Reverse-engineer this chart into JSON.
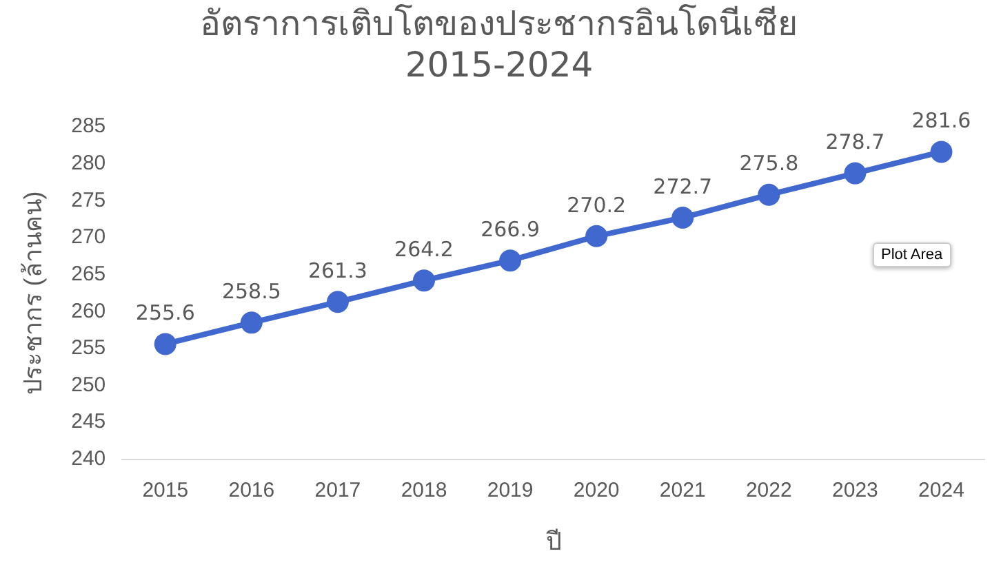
{
  "chart_data": {
    "type": "line",
    "title": "อัตราการเติบโตของประชากรอินโดนีเซีย\n2015-2024",
    "xlabel": "ปี",
    "ylabel": "ประชากร (ล้านคน)",
    "categories": [
      "2015",
      "2016",
      "2017",
      "2018",
      "2019",
      "2020",
      "2021",
      "2022",
      "2023",
      "2024"
    ],
    "series": [
      {
        "color": "#4068cf",
        "values": [
          255.6,
          258.5,
          261.3,
          264.2,
          266.9,
          270.2,
          272.7,
          275.8,
          278.7,
          281.6
        ]
      }
    ],
    "ylim": [
      240,
      285
    ],
    "yticks": [
      240,
      245,
      250,
      255,
      260,
      265,
      270,
      275,
      280,
      285
    ],
    "grid": false,
    "legend": false,
    "marker": "circle",
    "line_style": "solid",
    "data_labels": true,
    "annotations": [
      "Plot Area"
    ]
  }
}
